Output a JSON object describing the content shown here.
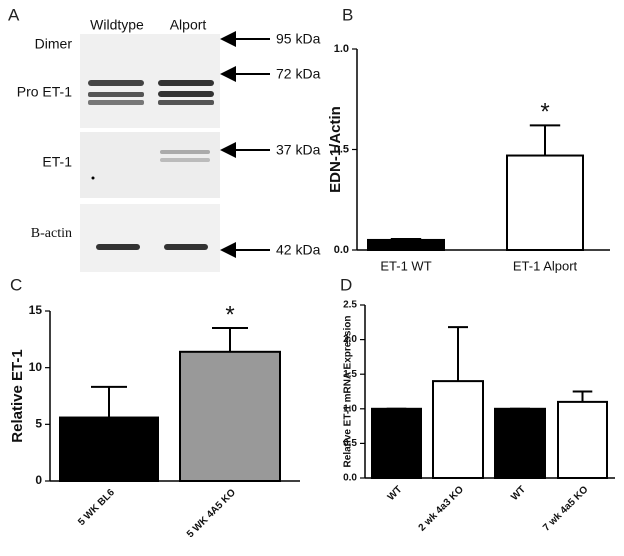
{
  "blot": {
    "panel": "A",
    "columns": [
      "Wildtype",
      "Alport"
    ],
    "rows": [
      "Dimer",
      "Pro ET-1",
      "ET-1",
      "B-actin"
    ],
    "markers": [
      "95 kDa",
      "72 kDa",
      "37 kDa",
      "42 kDa"
    ]
  },
  "chart_data": [
    {
      "type": "bar",
      "panel": "B",
      "ylabel": "EDN-1/Actin",
      "categories": [
        "ET-1 WT",
        "ET-1 Alport"
      ],
      "values": [
        0.05,
        0.47
      ],
      "errors": [
        0.005,
        0.15
      ],
      "colors": [
        "#000000",
        "#ffffff"
      ],
      "edgecolor": "#000000",
      "ylim": [
        0,
        1.0
      ],
      "yticks": [
        {
          "value": 0,
          "label": "0.0"
        },
        {
          "value": 0.5,
          "label": "0.5"
        },
        {
          "value": 1.0,
          "label": "1.0"
        }
      ],
      "annotation": "*"
    },
    {
      "type": "bar",
      "panel": "C",
      "ylabel": "Relative ET-1",
      "categories": [
        "5  WK BL6",
        "5  WK 4A5 KO"
      ],
      "values": [
        5.6,
        11.4
      ],
      "errors": [
        2.7,
        2.1
      ],
      "colors": [
        "#000000",
        "#999999"
      ],
      "edgecolor": "#000000",
      "ylim": [
        0,
        15
      ],
      "yticks": [
        0,
        5,
        10,
        15
      ],
      "annotation": "*"
    },
    {
      "type": "bar",
      "panel": "D",
      "ylabel": "Relative ET-1 mRNA Expression",
      "categories": [
        "WT",
        "2 wk 4a3 KO",
        "WT",
        "7 wk 4a5 KO"
      ],
      "values": [
        1.0,
        1.4,
        1.0,
        1.1
      ],
      "errors": [
        0,
        0.78,
        0,
        0.15
      ],
      "colors": [
        "#000000",
        "#ffffff",
        "#000000",
        "#ffffff"
      ],
      "edgecolor": "#000000",
      "ylim": [
        0,
        2.5
      ],
      "yticks": [
        {
          "value": 0,
          "label": "0.0"
        },
        {
          "value": 0.5,
          "label": "0.5"
        },
        {
          "value": 1.0,
          "label": "1.0"
        },
        {
          "value": 1.5,
          "label": "1.5"
        },
        {
          "value": 2.0,
          "label": "2.0"
        },
        {
          "value": 2.5,
          "label": "2.5"
        }
      ]
    }
  ]
}
